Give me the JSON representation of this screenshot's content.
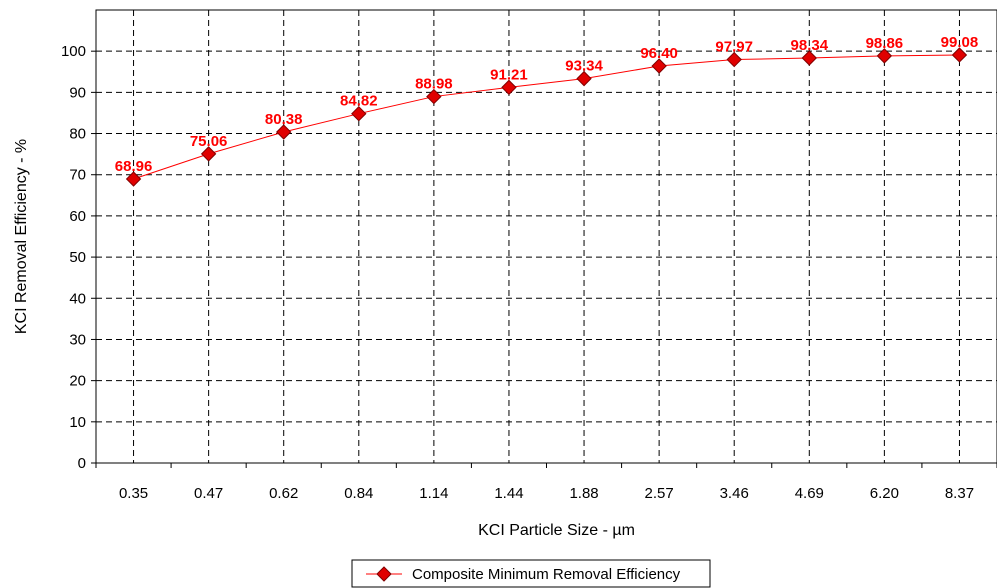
{
  "chart_data": {
    "type": "line",
    "categories": [
      "0.35",
      "0.47",
      "0.62",
      "0.84",
      "1.14",
      "1.44",
      "1.88",
      "2.57",
      "3.46",
      "4.69",
      "6.20",
      "8.37"
    ],
    "series": [
      {
        "name": "Composite Minimum Removal Efficiency",
        "values": [
          68.96,
          75.06,
          80.38,
          84.82,
          88.98,
          91.21,
          93.34,
          96.4,
          97.97,
          98.34,
          98.86,
          99.08
        ],
        "labels": [
          "68.96",
          "75.06",
          "80.38",
          "84.82",
          "88.98",
          "91.21",
          "93.34",
          "96.40",
          "97.97",
          "98.34",
          "98.86",
          "99.08"
        ],
        "color": "#ff0000",
        "marker": "diamond"
      }
    ],
    "xlabel": "KCI Particle Size - µm",
    "ylabel": "KCI Removal Efficiency - %",
    "ylim": [
      0,
      110
    ],
    "yticks": [
      "0",
      "10",
      "20",
      "30",
      "40",
      "50",
      "60",
      "70",
      "80",
      "90",
      "100"
    ],
    "grid": true,
    "legend_position": "bottom"
  }
}
